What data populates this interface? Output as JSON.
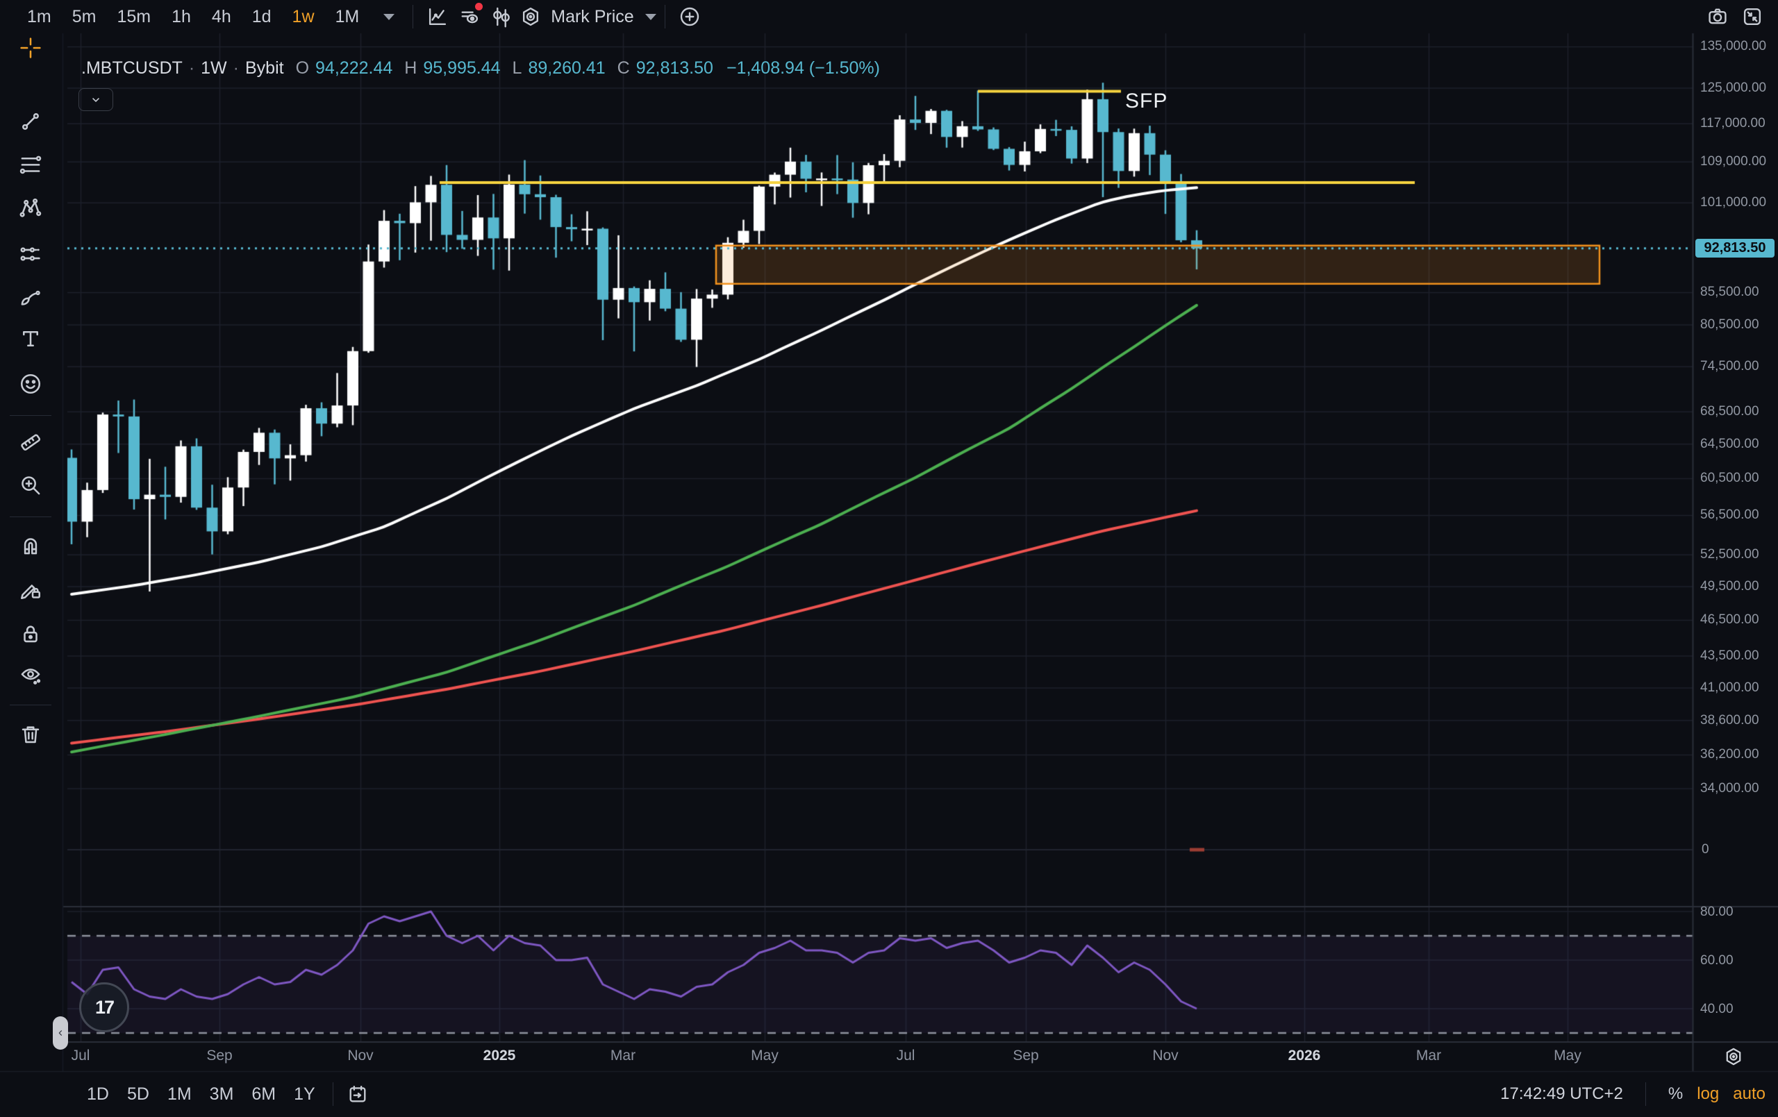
{
  "header": {
    "timeframes": [
      {
        "label": "1m",
        "active": false
      },
      {
        "label": "5m",
        "active": false
      },
      {
        "label": "15m",
        "active": false
      },
      {
        "label": "1h",
        "active": false
      },
      {
        "label": "4h",
        "active": false
      },
      {
        "label": "1d",
        "active": false
      },
      {
        "label": "1w",
        "active": true
      },
      {
        "label": "1M",
        "active": false
      }
    ],
    "price_source_label": "Mark Price",
    "left_icons": [
      "chart-style-icon",
      "indicators-icon",
      "compare-candles-icon"
    ],
    "right_icons": [
      "camera-icon",
      "minimize-icon"
    ]
  },
  "legend": {
    "symbol": ".MBTCUSDT",
    "dot1": "·",
    "interval": "1W",
    "dot2": "·",
    "exchange": "Bybit",
    "o_key": "O",
    "o_val": "94,222.44",
    "h_key": "H",
    "h_val": "95,995.44",
    "l_key": "L",
    "l_val": "89,260.41",
    "c_key": "C",
    "c_val": "92,813.50",
    "change": "−1,408.94 (−1.50%)"
  },
  "drawing_text": "SFP",
  "left_toolbar": [
    {
      "name": "crosshair",
      "active": true
    },
    {
      "name": "trend-line",
      "active": false
    },
    {
      "name": "fib-retracement",
      "active": false
    },
    {
      "name": "xabcd-pattern",
      "active": false
    },
    {
      "name": "projection",
      "active": false
    },
    {
      "name": "brush",
      "active": false
    },
    {
      "name": "text-tool",
      "active": false
    },
    {
      "name": "emoji",
      "active": false
    },
    {
      "name": "divider"
    },
    {
      "name": "ruler",
      "active": false
    },
    {
      "name": "zoom-in",
      "active": false
    },
    {
      "name": "divider"
    },
    {
      "name": "magnet",
      "active": false
    },
    {
      "name": "drawing-lock",
      "active": false
    },
    {
      "name": "lock-all",
      "active": false
    },
    {
      "name": "hide-drawings",
      "active": false
    },
    {
      "name": "divider"
    },
    {
      "name": "trash",
      "active": false
    }
  ],
  "price_axis": {
    "labels": [
      {
        "text": "135,000.00",
        "price": 135000
      },
      {
        "text": "125,000.00",
        "price": 125000
      },
      {
        "text": "117,000.00",
        "price": 117000
      },
      {
        "text": "109,000.00",
        "price": 109000
      },
      {
        "text": "101,000.00",
        "price": 101000
      },
      {
        "text": "85,500.00",
        "price": 85500
      },
      {
        "text": "80,500.00",
        "price": 80500
      },
      {
        "text": "74,500.00",
        "price": 74500
      },
      {
        "text": "68,500.00",
        "price": 68500
      },
      {
        "text": "64,500.00",
        "price": 64500
      },
      {
        "text": "60,500.00",
        "price": 60500
      },
      {
        "text": "56,500.00",
        "price": 56500
      },
      {
        "text": "52,500.00",
        "price": 52500
      },
      {
        "text": "49,500.00",
        "price": 49500
      },
      {
        "text": "46,500.00",
        "price": 46500
      },
      {
        "text": "43,500.00",
        "price": 43500
      },
      {
        "text": "41,000.00",
        "price": 41000
      },
      {
        "text": "38,600.00",
        "price": 38600
      },
      {
        "text": "36,200.00",
        "price": 36200
      },
      {
        "text": "34,000.00",
        "price": 34000
      }
    ],
    "current": {
      "text": "92,813.50",
      "price": 92813.5
    },
    "zero_label": "0"
  },
  "rsi_axis": [
    {
      "text": "80.00",
      "value": 80
    },
    {
      "text": "60.00",
      "value": 60
    },
    {
      "text": "40.00",
      "value": 40
    }
  ],
  "time_axis": [
    {
      "label": "Jul",
      "x": 116,
      "bold": false
    },
    {
      "label": "Sep",
      "x": 316,
      "bold": false
    },
    {
      "label": "Nov",
      "x": 519,
      "bold": false
    },
    {
      "label": "2025",
      "x": 719,
      "bold": true
    },
    {
      "label": "Mar",
      "x": 897,
      "bold": false
    },
    {
      "label": "May",
      "x": 1101,
      "bold": false
    },
    {
      "label": "Jul",
      "x": 1304,
      "bold": false
    },
    {
      "label": "Sep",
      "x": 1477,
      "bold": false
    },
    {
      "label": "Nov",
      "x": 1678,
      "bold": false
    },
    {
      "label": "2026",
      "x": 1878,
      "bold": true
    },
    {
      "label": "Mar",
      "x": 2057,
      "bold": false
    },
    {
      "label": "May",
      "x": 2257,
      "bold": false
    }
  ],
  "footer": {
    "ranges": [
      "1D",
      "5D",
      "1M",
      "3M",
      "6M",
      "1Y"
    ],
    "clock": "17:42:49 UTC+2",
    "percent_label": "%",
    "log_label": "log",
    "auto_label": "auto"
  },
  "colors": {
    "bg": "#0c0e14",
    "grid": "#1c202b",
    "separator": "#2a2e39",
    "up": "#ffffff",
    "down": "#57b8cf",
    "ma_fast": "#ffffff",
    "ma_mid": "#4caf50",
    "ma_slow": "#ef5350",
    "rsi": "#7e57c2",
    "rsi_band": "rgba(126,87,194,0.08)",
    "rsi_dash": "#8f939e",
    "yellow": "#f6d33f",
    "box_border": "#f2921e",
    "box_fill": "rgba(242,146,30,0.16)",
    "accent": "#f0a028",
    "badge": "#f23645",
    "zero_dash": "#9c3d33",
    "price_line": "#57b8cf"
  },
  "chart_data": {
    "type": "candlestick",
    "symbol": ".MBTCUSDT",
    "interval": "1W",
    "exchange": "Bybit",
    "scale": "log",
    "ylim": [
      34000,
      135000
    ],
    "rsi_ylim": [
      30,
      80
    ],
    "candles": [
      [
        62884,
        63873,
        53550,
        55849
      ],
      [
        55849,
        60050,
        54260,
        59231
      ],
      [
        59231,
        68400,
        58910,
        68155
      ],
      [
        68155,
        69950,
        63450,
        67912
      ],
      [
        67912,
        70080,
        57120,
        58232
      ],
      [
        58232,
        62770,
        49050,
        58719
      ],
      [
        58719,
        61850,
        56080,
        58483
      ],
      [
        58483,
        64950,
        57860,
        64252
      ],
      [
        64252,
        65200,
        57090,
        57325
      ],
      [
        57325,
        59820,
        52550,
        54850
      ],
      [
        54850,
        60660,
        54560,
        59510
      ],
      [
        59510,
        63850,
        57490,
        63580
      ],
      [
        63580,
        66480,
        62060,
        65888
      ],
      [
        65888,
        66280,
        59860,
        62819
      ],
      [
        62819,
        64480,
        60280,
        63193
      ],
      [
        63193,
        69400,
        62450,
        68955
      ],
      [
        68955,
        69720,
        65460,
        67014
      ],
      [
        67014,
        73620,
        66560,
        69310
      ],
      [
        69310,
        77280,
        66820,
        76680
      ],
      [
        76680,
        93480,
        76450,
        90580
      ],
      [
        90580,
        99660,
        89560,
        97690
      ],
      [
        97690,
        98990,
        90790,
        97270
      ],
      [
        97270,
        104200,
        92090,
        101110
      ],
      [
        101110,
        106190,
        94150,
        104460
      ],
      [
        104460,
        108360,
        92170,
        95170
      ],
      [
        95170,
        99500,
        92750,
        94300
      ],
      [
        94300,
        102480,
        91530,
        98300
      ],
      [
        98300,
        102700,
        89220,
        94560
      ],
      [
        94560,
        106460,
        89060,
        104500
      ],
      [
        104500,
        109360,
        99010,
        102640
      ],
      [
        102640,
        106280,
        97900,
        102080
      ],
      [
        102080,
        102540,
        91230,
        96560
      ],
      [
        96560,
        98890,
        94050,
        96180
      ],
      [
        96180,
        99440,
        93380,
        96270
      ],
      [
        96270,
        96500,
        78260,
        84370
      ],
      [
        84370,
        95100,
        81490,
        86220
      ],
      [
        86220,
        86470,
        76640,
        83980
      ],
      [
        83980,
        87470,
        81160,
        86090
      ],
      [
        86090,
        88770,
        82580,
        82980
      ],
      [
        82980,
        85560,
        78010,
        78320
      ],
      [
        78320,
        86060,
        74460,
        84540
      ],
      [
        84540,
        85980,
        83110,
        85170
      ],
      [
        85170,
        94760,
        84420,
        93780
      ],
      [
        93780,
        97890,
        92910,
        95890
      ],
      [
        95890,
        104320,
        93570,
        104110
      ],
      [
        104110,
        106860,
        100720,
        106440
      ],
      [
        106440,
        111920,
        102010,
        109060
      ],
      [
        109060,
        110430,
        103010,
        105640
      ],
      [
        105640,
        106880,
        100430,
        105690
      ],
      [
        105690,
        110390,
        102660,
        105470
      ],
      [
        105470,
        108920,
        98260,
        100990
      ],
      [
        100990,
        108790,
        98890,
        108330
      ],
      [
        108330,
        110590,
        105120,
        109220
      ],
      [
        109220,
        118870,
        107930,
        117940
      ],
      [
        117940,
        123220,
        115670,
        117190
      ],
      [
        117190,
        120250,
        114780,
        119850
      ],
      [
        119850,
        120080,
        111920,
        114170
      ],
      [
        114170,
        117580,
        111940,
        116470
      ],
      [
        116470,
        124460,
        115470,
        115780
      ],
      [
        115780,
        116210,
        111420,
        111680
      ],
      [
        111680,
        112040,
        107270,
        108390
      ],
      [
        108390,
        113180,
        107080,
        111170
      ],
      [
        111170,
        116870,
        110790,
        115880
      ],
      [
        115880,
        117860,
        114360,
        115680
      ],
      [
        115680,
        116450,
        108660,
        109680
      ],
      [
        109680,
        124680,
        108760,
        122470
      ],
      [
        122470,
        126280,
        102090,
        115210
      ],
      [
        115210,
        115980,
        103870,
        107170
      ],
      [
        107170,
        115950,
        106060,
        114980
      ],
      [
        114980,
        116590,
        106360,
        110480
      ],
      [
        110480,
        111380,
        98950,
        104770
      ],
      [
        104770,
        106580,
        93870,
        94222
      ],
      [
        94222,
        95995,
        89260,
        92813.5
      ]
    ],
    "ma_fast_anchors": [
      [
        0,
        48800
      ],
      [
        4,
        49600
      ],
      [
        8,
        50600
      ],
      [
        12,
        51800
      ],
      [
        16,
        53300
      ],
      [
        20,
        55300
      ],
      [
        24,
        58300
      ],
      [
        28,
        61900
      ],
      [
        32,
        65500
      ],
      [
        36,
        68900
      ],
      [
        40,
        71900
      ],
      [
        44,
        75500
      ],
      [
        48,
        79700
      ],
      [
        52,
        84300
      ],
      [
        56,
        89300
      ],
      [
        60,
        94300
      ],
      [
        63,
        97900
      ],
      [
        66,
        101200
      ],
      [
        68,
        102500
      ],
      [
        70,
        103400
      ],
      [
        72,
        103900
      ]
    ],
    "ma_mid_anchors": [
      [
        0,
        36400
      ],
      [
        6,
        37600
      ],
      [
        12,
        38900
      ],
      [
        18,
        40300
      ],
      [
        24,
        42200
      ],
      [
        30,
        44800
      ],
      [
        36,
        47800
      ],
      [
        42,
        51400
      ],
      [
        48,
        55600
      ],
      [
        54,
        60600
      ],
      [
        60,
        66400
      ],
      [
        64,
        71500
      ],
      [
        68,
        77300
      ],
      [
        72,
        83500
      ]
    ],
    "ma_slow_anchors": [
      [
        0,
        37000
      ],
      [
        6,
        37800
      ],
      [
        12,
        38700
      ],
      [
        18,
        39700
      ],
      [
        24,
        40900
      ],
      [
        30,
        42300
      ],
      [
        36,
        43900
      ],
      [
        42,
        45700
      ],
      [
        48,
        47800
      ],
      [
        54,
        50100
      ],
      [
        60,
        52500
      ],
      [
        66,
        54900
      ],
      [
        72,
        57000
      ]
    ],
    "rsi": [
      51,
      46,
      56,
      57,
      48,
      45,
      44,
      48,
      45,
      44,
      46,
      50,
      53,
      50,
      51,
      56,
      54,
      58,
      64,
      75,
      78,
      76,
      78,
      80,
      70,
      67,
      70,
      64,
      70,
      67,
      66,
      60,
      60,
      61,
      50,
      47,
      44,
      48,
      47,
      45,
      49,
      50,
      55,
      58,
      63,
      65,
      68,
      64,
      64,
      63,
      59,
      63,
      64,
      69,
      68,
      69,
      65,
      67,
      68,
      64,
      59,
      61,
      64,
      63,
      58,
      66,
      61,
      55,
      59,
      56,
      50,
      43,
      40
    ],
    "rsi_levels": {
      "upper": 70,
      "lower": 30
    },
    "last_price": 92813.5,
    "drawings": {
      "hline_top": {
        "price": 124300,
        "x1": 1408,
        "x2": 1614
      },
      "hline_main": {
        "price": 104900,
        "x1": 633,
        "x2": 2037
      },
      "box": {
        "x1": 1031,
        "x2": 2303,
        "price_top": 93300,
        "price_bottom": 86900
      },
      "text_label": {
        "text": "SFP"
      }
    },
    "zero_line_y": 1224
  }
}
